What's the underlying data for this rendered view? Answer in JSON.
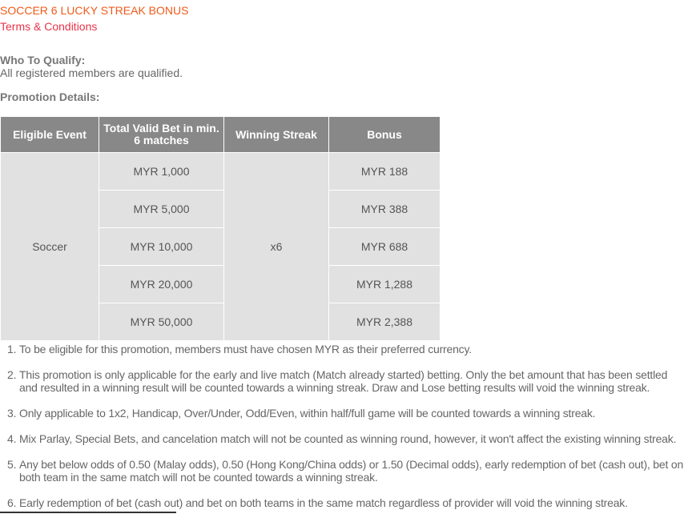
{
  "title": "SOCCER 6 LUCKY STREAK BONUS",
  "terms_link": "Terms & Conditions",
  "qualify": {
    "heading": "Who To Qualify:",
    "text": "All registered members are qualified."
  },
  "details_heading": "Promotion Details:",
  "table": {
    "headers": [
      "Eligible Event",
      "Total Valid Bet in min. 6 matches",
      "Winning Streak",
      "Bonus"
    ],
    "event": "Soccer",
    "streak": "x6",
    "bets": [
      "MYR 1,000",
      "MYR 5,000",
      "MYR 10,000",
      "MYR 20,000",
      "MYR 50,000"
    ],
    "bonuses": [
      "MYR 188",
      "MYR 388",
      "MYR 688",
      "MYR 1,288",
      "MYR 2,388"
    ]
  },
  "terms": [
    "To be eligible for this promotion, members must have chosen MYR as their preferred currency.",
    "This promotion is only applicable for the early and live match (Match already started) betting. Only the bet amount that has been settled and resulted in a winning result will be counted towards a winning streak. Draw and Lose betting results will void the winning streak.",
    "Only applicable to 1x2, Handicap, Over/Under, Odd/Even, within half/full game will be counted towards a winning streak.",
    "Mix Parlay, Special Bets, and cancelation match will not be counted as winning round, however, it won't affect the existing winning streak.",
    "Any bet below odds of 0.50 (Malay odds), 0.50 (Hong Kong/China odds) or 1.50 (Decimal odds), early redemption of bet (cash out), bet on both team in the same match will not be counted towards a winning streak.",
    "Early redemption of bet (cash out) and bet on both teams in the same match regardless of provider will void the winning streak."
  ]
}
